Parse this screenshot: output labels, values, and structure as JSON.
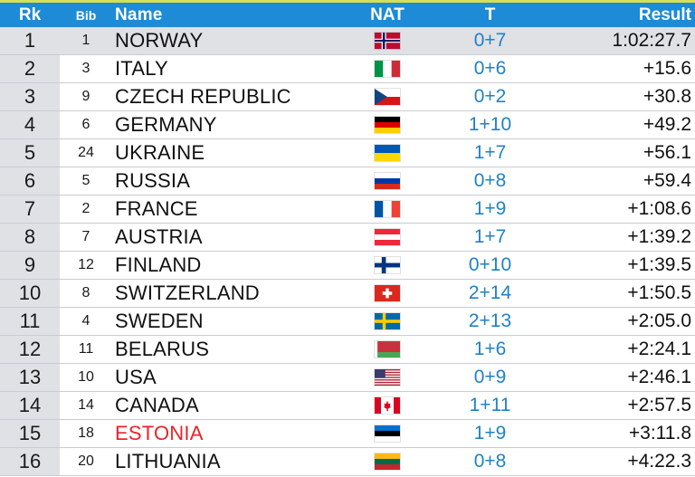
{
  "header": {
    "rk": "Rk",
    "bib": "Bib",
    "name": "Name",
    "nat": "NAT",
    "t": "T",
    "result": "Result"
  },
  "rows": [
    {
      "rk": "1",
      "bib": "1",
      "name": "NORWAY",
      "flag": "norway-flag",
      "t": "0+7",
      "result": "1:02:27.7"
    },
    {
      "rk": "2",
      "bib": "3",
      "name": "ITALY",
      "flag": "italy-flag",
      "t": "0+6",
      "result": "+15.6"
    },
    {
      "rk": "3",
      "bib": "9",
      "name": "CZECH REPUBLIC",
      "flag": "czech-flag",
      "t": "0+2",
      "result": "+30.8"
    },
    {
      "rk": "4",
      "bib": "6",
      "name": "GERMANY",
      "flag": "germany-flag",
      "t": "1+10",
      "result": "+49.2"
    },
    {
      "rk": "5",
      "bib": "24",
      "name": "UKRAINE",
      "flag": "ukraine-flag",
      "t": "1+7",
      "result": "+56.1"
    },
    {
      "rk": "6",
      "bib": "5",
      "name": "RUSSIA",
      "flag": "russia-flag",
      "t": "0+8",
      "result": "+59.4"
    },
    {
      "rk": "7",
      "bib": "2",
      "name": "FRANCE",
      "flag": "france-flag",
      "t": "1+9",
      "result": "+1:08.6"
    },
    {
      "rk": "8",
      "bib": "7",
      "name": "AUSTRIA",
      "flag": "austria-flag",
      "t": "1+7",
      "result": "+1:39.2"
    },
    {
      "rk": "9",
      "bib": "12",
      "name": "FINLAND",
      "flag": "finland-flag",
      "t": "0+10",
      "result": "+1:39.5"
    },
    {
      "rk": "10",
      "bib": "8",
      "name": "SWITZERLAND",
      "flag": "switzerland-flag",
      "t": "2+14",
      "result": "+1:50.5"
    },
    {
      "rk": "11",
      "bib": "4",
      "name": "SWEDEN",
      "flag": "sweden-flag",
      "t": "2+13",
      "result": "+2:05.0"
    },
    {
      "rk": "12",
      "bib": "11",
      "name": "BELARUS",
      "flag": "belarus-flag",
      "t": "1+6",
      "result": "+2:24.1"
    },
    {
      "rk": "13",
      "bib": "10",
      "name": "USA",
      "flag": "usa-flag",
      "t": "0+9",
      "result": "+2:46.1"
    },
    {
      "rk": "14",
      "bib": "14",
      "name": "CANADA",
      "flag": "canada-flag",
      "t": "1+11",
      "result": "+2:57.5"
    },
    {
      "rk": "15",
      "bib": "18",
      "name": "ESTONIA",
      "flag": "estonia-flag",
      "t": "1+9",
      "result": "+3:11.8",
      "highlight": true
    },
    {
      "rk": "16",
      "bib": "20",
      "name": "LITHUANIA",
      "flag": "lithuania-flag",
      "t": "0+8",
      "result": "+4:22.3"
    }
  ],
  "colors": {
    "header_bg": "#1d8bd6",
    "accent_line": "#d4e157",
    "rank_bg": "#dfe1e5",
    "shooting_text": "#1f82c6",
    "highlight_text": "#e8242a"
  }
}
